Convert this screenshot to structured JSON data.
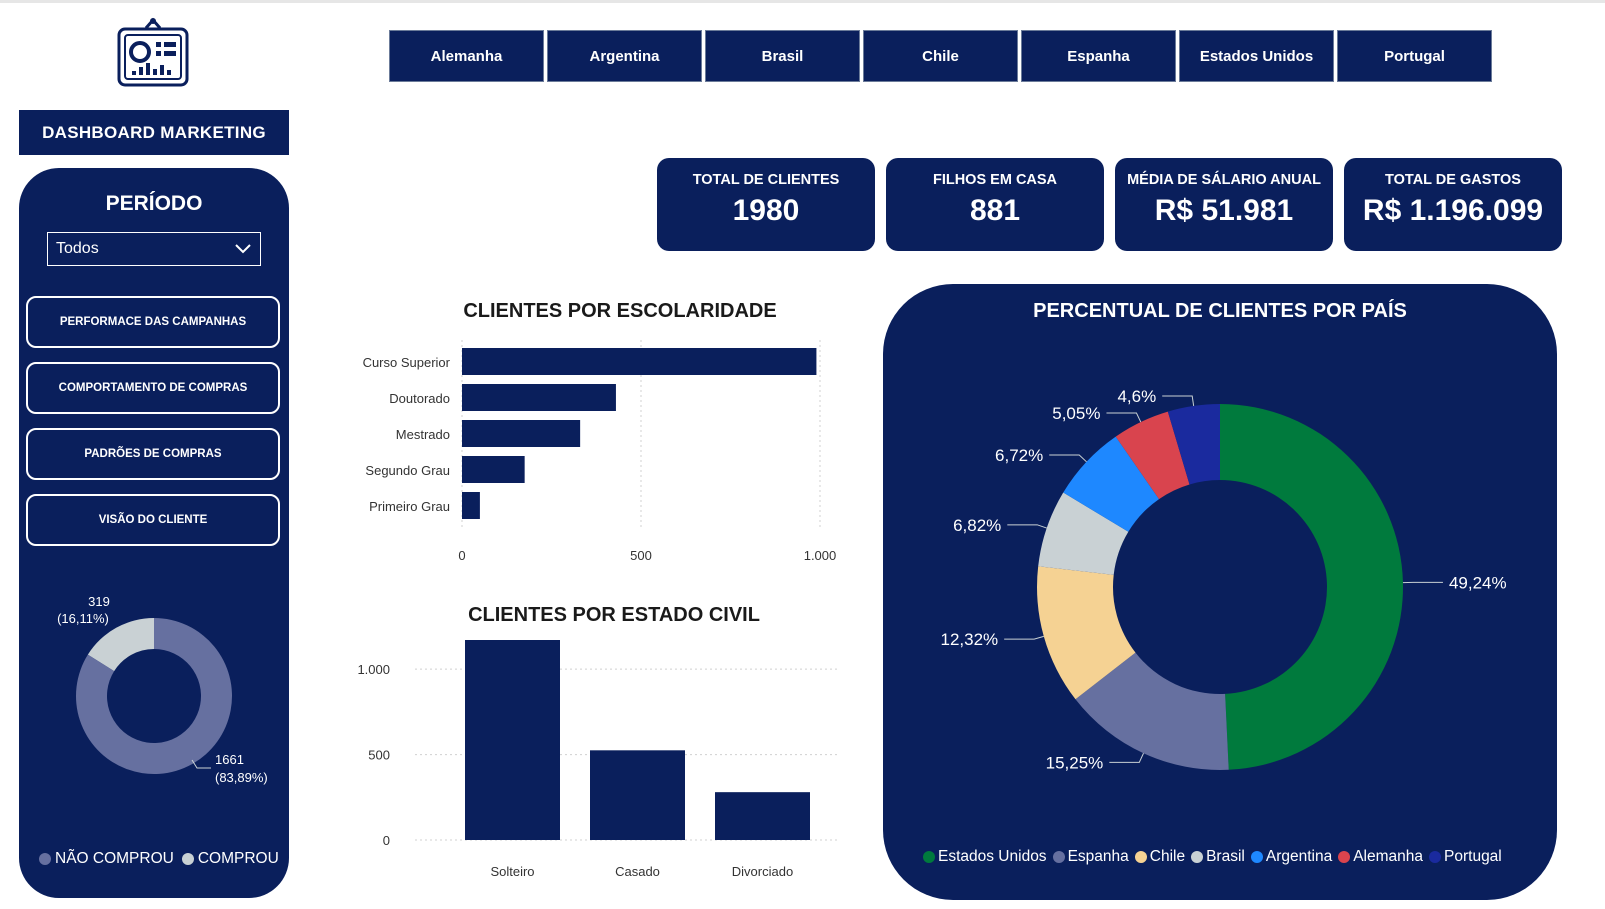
{
  "title": "DASHBOARD MARKETING",
  "sidebar": {
    "periodo_label": "PERÍODO",
    "periodo_value": "Todos",
    "nav": [
      {
        "label": "PERFORMACE DAS CAMPANHAS"
      },
      {
        "label": "COMPORTAMENTO DE COMPRAS"
      },
      {
        "label": "PADRÕES DE COMPRAS"
      },
      {
        "label": "VISÃO DO CLIENTE"
      }
    ],
    "purchase_donut": {
      "slices": [
        {
          "name": "COMPROU",
          "value": 319,
          "label_top": "319",
          "label_bottom": "(16,11%)",
          "color": "#c9d1d4"
        },
        {
          "name": "NÃO COMPROU",
          "value": 1661,
          "label_top": "1661",
          "label_bottom": "(83,89%)",
          "color": "#6670a0"
        }
      ],
      "legend": [
        {
          "label": "NÃO COMPROU",
          "color": "#6670a0"
        },
        {
          "label": "COMPROU",
          "color": "#c9d1d4"
        }
      ]
    }
  },
  "countries": [
    "Alemanha",
    "Argentina",
    "Brasil",
    "Chile",
    "Espanha",
    "Estados Unidos",
    "Portugal"
  ],
  "kpis": [
    {
      "label": "TOTAL DE CLIENTES",
      "value": "1980"
    },
    {
      "label": "FILHOS EM CASA",
      "value": "881"
    },
    {
      "label": "MÉDIA DE SÁLARIO ANUAL",
      "value": "R$ 51.981"
    },
    {
      "label": "TOTAL DE GASTOS",
      "value": "R$ 1.196.099"
    }
  ],
  "colors": {
    "navy": "#0a1f5c"
  },
  "chart_data": [
    {
      "type": "bar",
      "orientation": "horizontal",
      "title": "CLIENTES POR ESCOLARIDADE",
      "categories": [
        "Curso Superior",
        "Doutorado",
        "Mestrado",
        "Segundo Grau",
        "Primeiro Grau"
      ],
      "values": [
        990,
        430,
        330,
        175,
        50
      ],
      "xlim": [
        0,
        1000
      ],
      "ticks": [
        {
          "v": 0,
          "label": "0"
        },
        {
          "v": 500,
          "label": "500"
        },
        {
          "v": 1000,
          "label": "1.000"
        }
      ],
      "grid": true
    },
    {
      "type": "bar",
      "orientation": "vertical",
      "title": "CLIENTES POR ESTADO CIVIL",
      "categories": [
        "Solteiro",
        "Casado",
        "Divorciado"
      ],
      "values": [
        1180,
        525,
        280
      ],
      "ylim": [
        0,
        1200
      ],
      "ticks": [
        {
          "v": 0,
          "label": "0"
        },
        {
          "v": 500,
          "label": "500"
        },
        {
          "v": 1000,
          "label": "1.000"
        }
      ],
      "grid": true
    },
    {
      "type": "pie",
      "title": "PERCENTUAL DE CLIENTES POR PAÍS",
      "slices": [
        {
          "name": "Estados Unidos",
          "value": 49.24,
          "label": "49,24%",
          "color": "#007a3d"
        },
        {
          "name": "Espanha",
          "value": 15.25,
          "label": "15,25%",
          "color": "#6670a0"
        },
        {
          "name": "Chile",
          "value": 12.32,
          "label": "12,32%",
          "color": "#f5d293"
        },
        {
          "name": "Brasil",
          "value": 6.82,
          "label": "6,82%",
          "color": "#c9d1d4"
        },
        {
          "name": "Argentina",
          "value": 6.72,
          "label": "6,72%",
          "color": "#1e88ff"
        },
        {
          "name": "Alemanha",
          "value": 5.05,
          "label": "5,05%",
          "color": "#d9444e"
        },
        {
          "name": "Portugal",
          "value": 4.6,
          "label": "4,6%",
          "color": "#1a2a9e"
        }
      ],
      "legend_placement": "bottom"
    }
  ]
}
